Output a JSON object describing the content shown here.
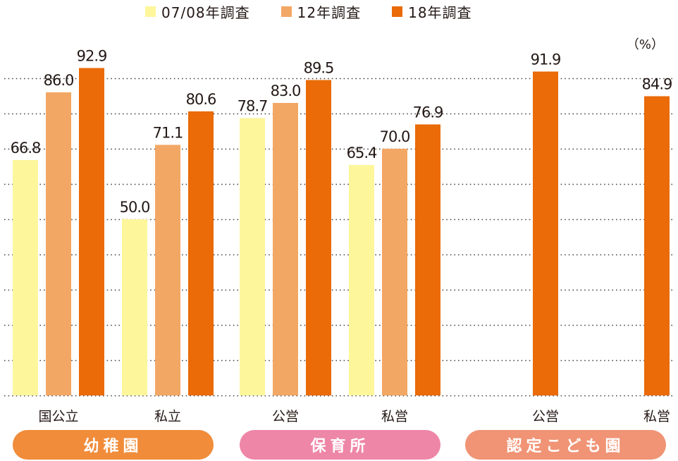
{
  "legend": [
    {
      "label": "07/08年調査",
      "color": "#fdf69b"
    },
    {
      "label": "12年調査",
      "color": "#f3a764"
    },
    {
      "label": "18年調査",
      "color": "#ea6b08"
    }
  ],
  "unit": "（%）",
  "groups": [
    {
      "label": "幼稚園",
      "color": "#f08c3a"
    },
    {
      "label": "保育所",
      "color": "#ee86a8"
    },
    {
      "label": "認定こども園",
      "color": "#f09475"
    }
  ],
  "chart_data": {
    "type": "bar",
    "categories": [
      "国公立",
      "私立",
      "公営",
      "私営",
      "公営",
      "私営"
    ],
    "series": [
      {
        "name": "07/08年調査",
        "values": [
          66.8,
          50.0,
          78.7,
          65.4,
          null,
          null
        ]
      },
      {
        "name": "12年調査",
        "values": [
          86.0,
          71.1,
          83.0,
          70.0,
          null,
          null
        ]
      },
      {
        "name": "18年調査",
        "values": [
          92.9,
          80.6,
          89.5,
          76.9,
          91.9,
          84.9
        ]
      }
    ],
    "value_labels": [
      [
        "66.8",
        "50.0",
        "78.7",
        "65.4",
        null,
        null
      ],
      [
        "86.0",
        "71.1",
        "83.0",
        "70.0",
        null,
        null
      ],
      [
        "92.9",
        "80.6",
        "89.5",
        "76.9",
        "91.9",
        "84.9"
      ]
    ],
    "ylim": [
      0,
      100
    ],
    "grid": true,
    "legend_position": "top"
  }
}
